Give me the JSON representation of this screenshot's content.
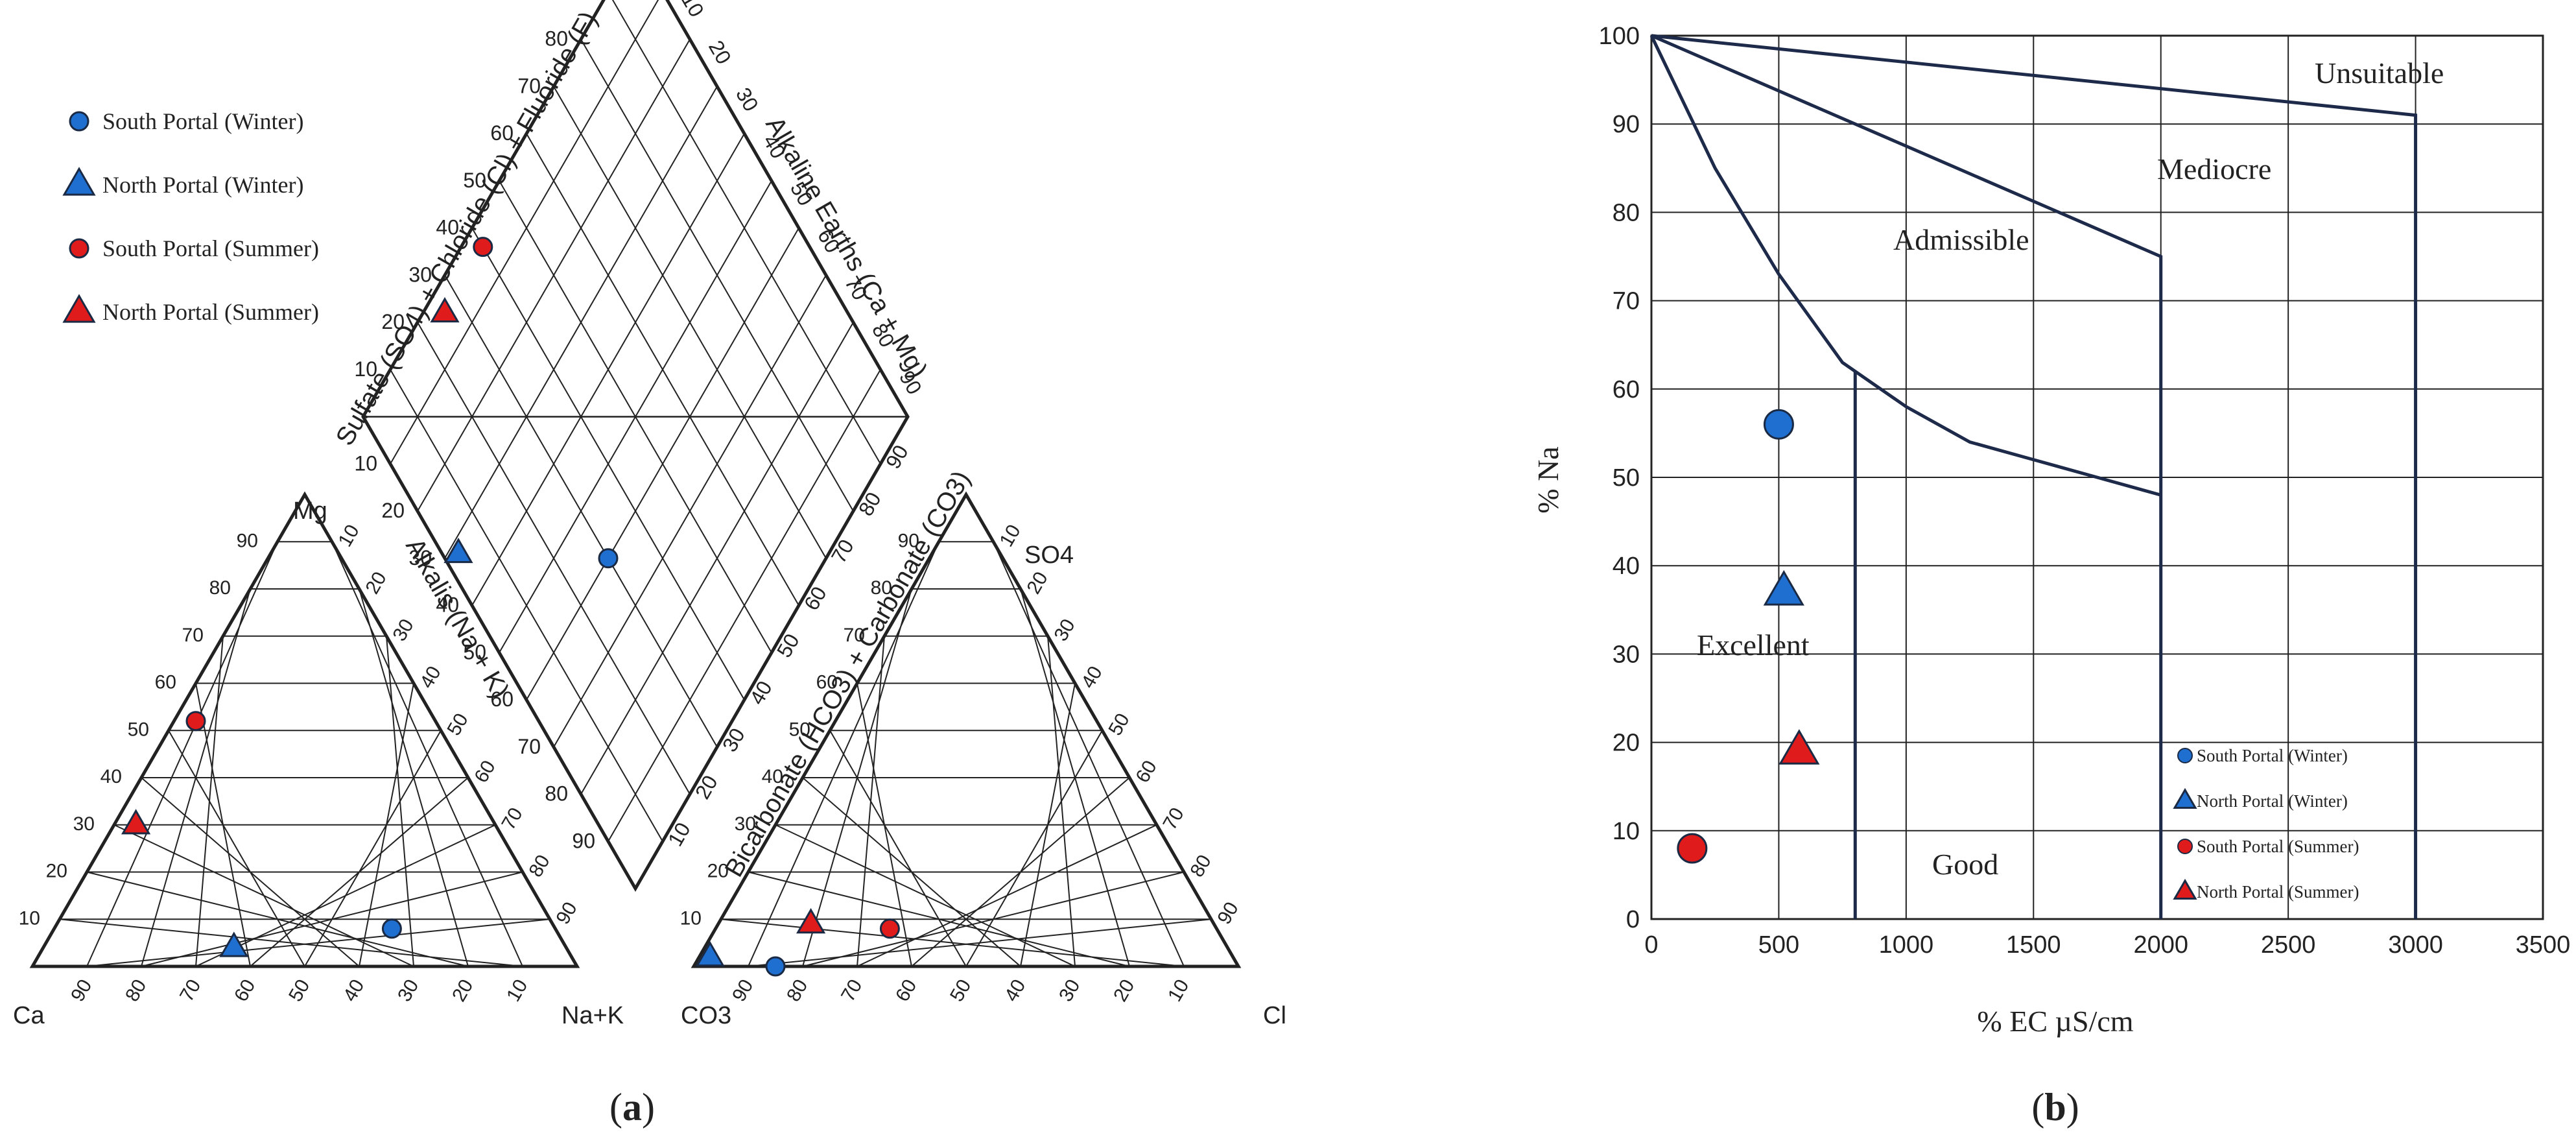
{
  "colors": {
    "south": "#1f6fd1",
    "north": "#1f6fd1",
    "south_summer": "#e01b1b",
    "north_summer": "#e01b1b",
    "outline": "#1a2a44",
    "grid": "#222222"
  },
  "legend": [
    {
      "label": "South Portal (Winter)",
      "color": "#1f6fd1",
      "marker": "circle"
    },
    {
      "label": "North Portal (Winter)",
      "color": "#1f6fd1",
      "marker": "triangle"
    },
    {
      "label": "South Portal (Summer)",
      "color": "#e01b1b",
      "marker": "circle"
    },
    {
      "label": "North Portal (Summer)",
      "color": "#e01b1b",
      "marker": "triangle"
    }
  ],
  "panel_a": {
    "label_open": "(",
    "label_letter": "a",
    "label_close": ")",
    "cation_corners": {
      "left": "Ca",
      "top": "Mg",
      "right": "Na+K"
    },
    "anion_corners": {
      "left": "CO3",
      "top": "SO4",
      "right": "Cl"
    },
    "diamond_axes": {
      "upper_left": "Sulfate (SO4) + Chloride (Cl) + Fluoride (F)",
      "upper_right": "Alkaline Earths (Ca + Mg)",
      "lower_right": "Bicarbonate (HCO3) + Carbonate (CO3)",
      "cation_right": "Alkalis (Na + K)"
    },
    "ticks": [
      "10",
      "20",
      "30",
      "40",
      "50",
      "60",
      "70",
      "80",
      "90"
    ]
  },
  "panel_b": {
    "label_open": "(",
    "label_letter": "b",
    "label_close": ")",
    "xlabel": "% EC µS/cm",
    "ylabel": "% Na",
    "region_labels": {
      "unsuitable": "Unsuitable",
      "mediocre": "Mediocre",
      "admissible": "Admissible",
      "excellent": "Excellent",
      "good": "Good"
    }
  },
  "chart_data": [
    {
      "type": "scatter",
      "subtype": "piper-diagram",
      "series": [
        {
          "name": "South Portal (Winter)",
          "cation": {
            "Ca": 30,
            "Mg": 8,
            "NaK": 62
          },
          "anion": {
            "CO3": 85,
            "SO4": 0,
            "Cl": 15
          },
          "diamond": {
            "SO4Cl": 30,
            "CaMg": 40
          }
        },
        {
          "name": "North Portal (Winter)",
          "cation": {
            "Ca": 61,
            "Mg": 4,
            "NaK": 35
          },
          "anion": {
            "CO3": 96,
            "SO4": 2,
            "Cl": 2
          },
          "diamond": {
            "SO4Cl": 3,
            "CaMg": 68
          }
        },
        {
          "name": "South Portal (Summer)",
          "cation": {
            "Ca": 44,
            "Mg": 52,
            "NaK": 4
          },
          "anion": {
            "CO3": 60,
            "SO4": 8,
            "Cl": 32
          },
          "diamond": {
            "SO4Cl": 40,
            "CaMg": 96
          }
        },
        {
          "name": "North Portal (Summer)",
          "cation": {
            "Ca": 66,
            "Mg": 30,
            "NaK": 4
          },
          "anion": {
            "CO3": 74,
            "SO4": 9,
            "Cl": 17
          },
          "diamond": {
            "SO4Cl": 26,
            "CaMg": 96
          }
        }
      ]
    },
    {
      "type": "scatter",
      "subtype": "wilcox-diagram",
      "xlabel": "% EC µS/cm",
      "ylabel": "% Na",
      "xlim": [
        0,
        3500
      ],
      "ylim": [
        0,
        100
      ],
      "xticks": [
        0,
        500,
        1000,
        1500,
        2000,
        2500,
        3000,
        3500
      ],
      "yticks": [
        0,
        10,
        20,
        30,
        40,
        50,
        60,
        70,
        80,
        90,
        100
      ],
      "grid": true,
      "legend_position": "bottom-right",
      "boundaries": [
        {
          "points": [
            [
              0,
              100
            ],
            [
              3000,
              91
            ],
            [
              3000,
              0
            ]
          ]
        },
        {
          "points": [
            [
              0,
              100
            ],
            [
              2000,
              75
            ],
            [
              2000,
              0
            ]
          ]
        },
        {
          "points": [
            [
              0,
              100
            ],
            [
              250,
              85
            ],
            [
              500,
              73
            ],
            [
              750,
              63
            ],
            [
              1000,
              58
            ],
            [
              1250,
              54
            ],
            [
              1500,
              52
            ],
            [
              1750,
              50
            ],
            [
              2000,
              48
            ]
          ]
        },
        {
          "points": [
            [
              800,
              62
            ],
            [
              800,
              0
            ]
          ]
        }
      ],
      "series": [
        {
          "name": "South Portal (Winter)",
          "marker": "circle",
          "color": "#1f6fd1",
          "x": [
            500
          ],
          "y": [
            56
          ]
        },
        {
          "name": "North Portal (Winter)",
          "marker": "triangle",
          "color": "#1f6fd1",
          "x": [
            520
          ],
          "y": [
            37
          ]
        },
        {
          "name": "South Portal (Summer)",
          "marker": "circle",
          "color": "#e01b1b",
          "x": [
            160
          ],
          "y": [
            8
          ]
        },
        {
          "name": "North Portal (Summer)",
          "marker": "triangle",
          "color": "#e01b1b",
          "x": [
            580
          ],
          "y": [
            19
          ]
        }
      ]
    }
  ]
}
